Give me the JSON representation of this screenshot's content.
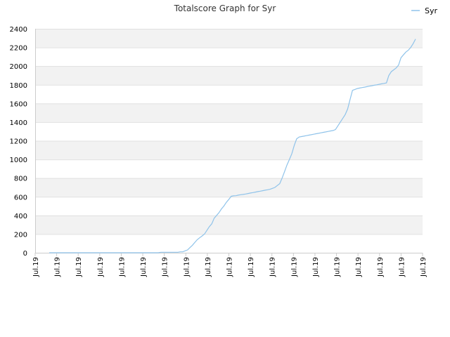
{
  "chart_data": {
    "type": "line",
    "title": "Totalscore Graph for Syr",
    "xlabel": "",
    "ylabel": "",
    "ylim": [
      0,
      2400
    ],
    "y_ticks": [
      0,
      200,
      400,
      600,
      800,
      1000,
      1200,
      1400,
      1600,
      1800,
      2000,
      2200,
      2400
    ],
    "x_tick_labels": [
      "Jul.19",
      "Jul.19",
      "Jul.19",
      "Jul.19",
      "Jul.19",
      "Jul.19",
      "Jul.19",
      "Jul.19",
      "Jul.19",
      "Jul.19",
      "Jul.19",
      "Jul.19",
      "Jul.19",
      "Jul.19",
      "Jul.19",
      "Jul.19",
      "Jul.19",
      "Jul.19",
      "Jul.19"
    ],
    "grid": "horizontal alternating bands",
    "legend_position": "top-right",
    "colors": {
      "line": "#8fc3ea",
      "band": "#f2f2f2",
      "gridline": "#e0e0e0",
      "axis": "#cccccc"
    },
    "series": [
      {
        "name": "Syr",
        "values": [
          0,
          0,
          0,
          0,
          0,
          0,
          0,
          0,
          0,
          0,
          0,
          0,
          0,
          0,
          0,
          0,
          0,
          0,
          0,
          0,
          0,
          0,
          0,
          0,
          0,
          0,
          0,
          0,
          0,
          0,
          0,
          0,
          0,
          0,
          0,
          0,
          0,
          0,
          0,
          0,
          0,
          0,
          0,
          0,
          0,
          0,
          5,
          5,
          5,
          5,
          5,
          5,
          5,
          5,
          10,
          10,
          20,
          30,
          55,
          80,
          110,
          140,
          160,
          180,
          200,
          240,
          280,
          310,
          370,
          400,
          430,
          470,
          500,
          540,
          570,
          605,
          610,
          612,
          618,
          622,
          625,
          630,
          635,
          640,
          645,
          650,
          655,
          660,
          665,
          670,
          675,
          680,
          690,
          700,
          720,
          740,
          800,
          870,
          940,
          1000,
          1060,
          1150,
          1220,
          1240,
          1245,
          1250,
          1255,
          1260,
          1265,
          1270,
          1275,
          1280,
          1285,
          1290,
          1295,
          1300,
          1305,
          1310,
          1320,
          1360,
          1400,
          1440,
          1480,
          1540,
          1640,
          1740,
          1750,
          1760,
          1765,
          1770,
          1775,
          1780,
          1785,
          1790,
          1795,
          1800,
          1805,
          1810,
          1815,
          1820,
          1900,
          1940,
          1960,
          1980,
          2010,
          2090,
          2120,
          2150,
          2170,
          2200,
          2240,
          2290
        ]
      }
    ]
  }
}
